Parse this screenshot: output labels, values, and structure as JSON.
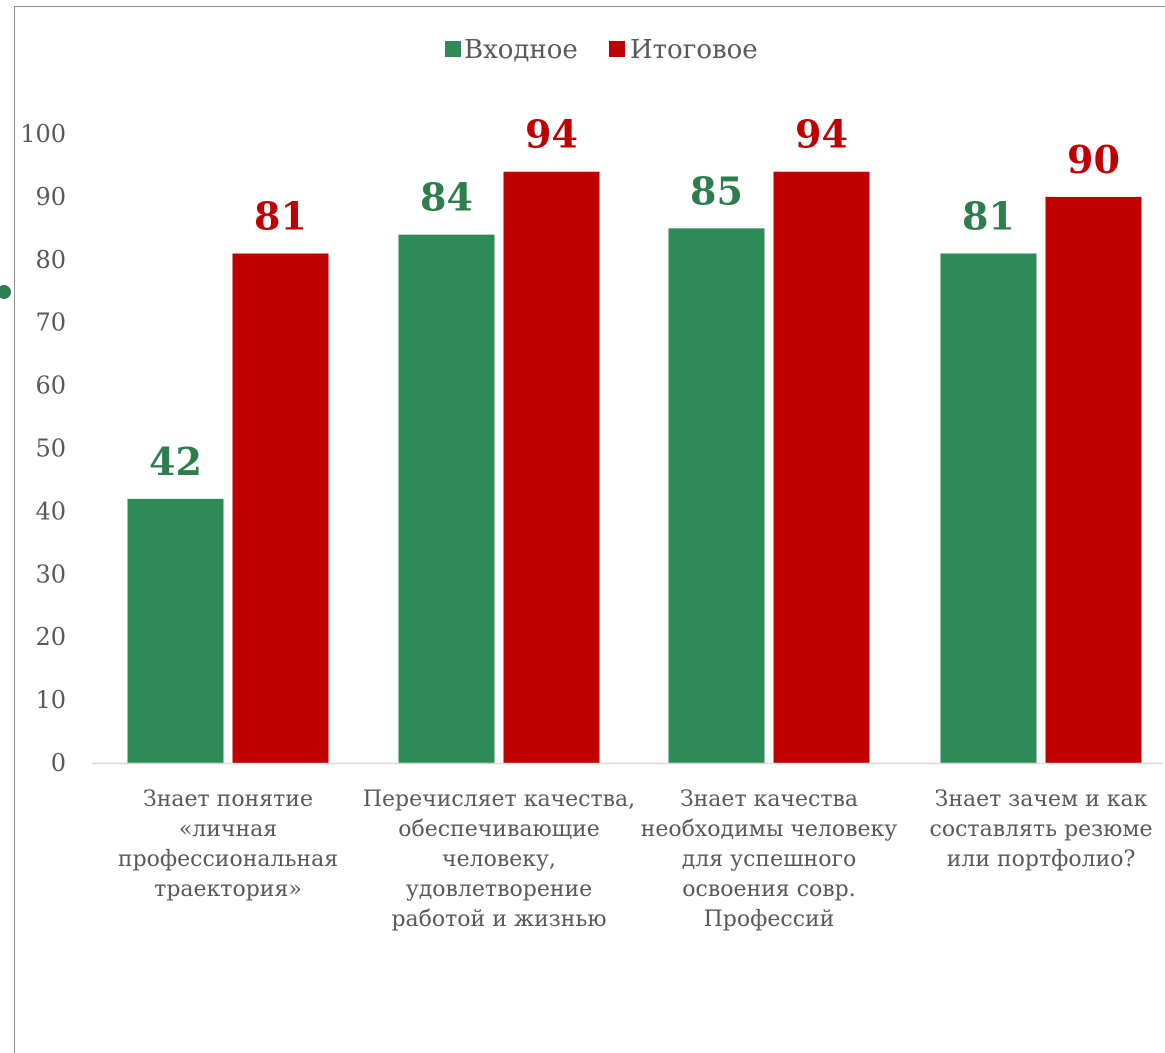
{
  "chart_data": {
    "type": "bar",
    "categories": [
      [
        "Знает  понятие",
        "«личная",
        "профессиональная",
        "траектория»"
      ],
      [
        "Перечисляет качества,",
        "обеспечивающие",
        "человеку,",
        "удовлетворение",
        "работой и   жизнью"
      ],
      [
        "Знает качества",
        "необходимы человеку",
        "для успешного",
        "освоения совр.",
        "Профессий"
      ],
      [
        "Знает зачем и как",
        "составлять резюме",
        "или портфолио?"
      ]
    ],
    "series": [
      {
        "name": "Входное",
        "color": "#2e8b57",
        "values": [
          42,
          84,
          85,
          81
        ]
      },
      {
        "name": "Итоговое",
        "color": "#c00000",
        "values": [
          81,
          94,
          94,
          90
        ]
      }
    ],
    "ylim": [
      0,
      100
    ],
    "yticks": [
      0,
      10,
      20,
      30,
      40,
      50,
      60,
      70,
      80,
      90,
      100
    ],
    "legend_position": "top-center",
    "grid": false,
    "data_labels": true
  },
  "colors": {
    "label_green": "#2e7d4f",
    "label_red": "#c00000",
    "axis": "#d9d9d9",
    "text": "#595959"
  }
}
